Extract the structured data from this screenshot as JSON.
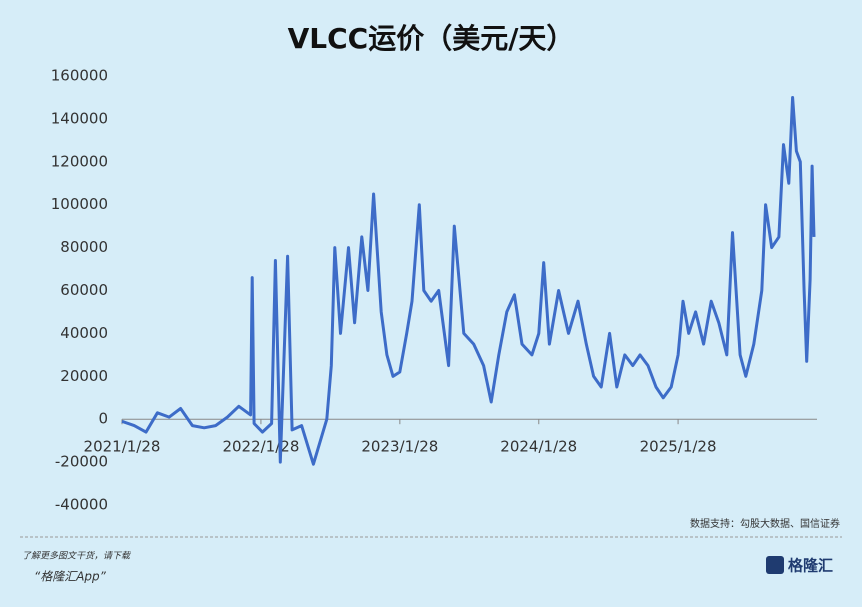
{
  "chart_data": {
    "type": "line",
    "title": "VLCC运价（美元/天）",
    "x": [
      "2021/1/28",
      "2021/3/1",
      "2021/4/1",
      "2021/5/1",
      "2021/6/1",
      "2021/7/1",
      "2021/8/1",
      "2021/9/1",
      "2021/10/1",
      "2021/11/1",
      "2021/12/1",
      "2022/1/1",
      "2022/1/5",
      "2022/1/10",
      "2022/2/1",
      "2022/2/25",
      "2022/3/7",
      "2022/3/20",
      "2022/4/8",
      "2022/4/20",
      "2022/5/15",
      "2022/6/15",
      "2022/7/20",
      "2022/8/1",
      "2022/8/10",
      "2022/8/25",
      "2022/9/15",
      "2022/10/1",
      "2022/10/20",
      "2022/11/5",
      "2022/11/20",
      "2022/12/10",
      "2022/12/25",
      "2023/1/10",
      "2023/1/28",
      "2023/2/15",
      "2023/3/1",
      "2023/3/20",
      "2023/4/1",
      "2023/4/20",
      "2023/5/10",
      "2023/6/5",
      "2023/6/20",
      "2023/7/15",
      "2023/8/10",
      "2023/9/5",
      "2023/9/25",
      "2023/10/15",
      "2023/11/5",
      "2023/11/25",
      "2023/12/15",
      "2024/1/10",
      "2024/1/28",
      "2024/2/10",
      "2024/2/25",
      "2024/3/20",
      "2024/4/15",
      "2024/5/10",
      "2024/6/1",
      "2024/6/20",
      "2024/7/10",
      "2024/8/1",
      "2024/8/20",
      "2024/9/10",
      "2024/10/1",
      "2024/10/20",
      "2024/11/10",
      "2024/12/1",
      "2024/12/20",
      "2025/1/10",
      "2025/1/28",
      "2025/2/10",
      "2025/2/25",
      "2025/3/15",
      "2025/4/5",
      "2025/4/25",
      "2025/5/15",
      "2025/6/5",
      "2025/6/20",
      "2025/7/10",
      "2025/7/25",
      "2025/8/15",
      "2025/9/5",
      "2025/9/15",
      "2025/10/1",
      "2025/10/20",
      "2025/11/1",
      "2025/11/15",
      "2025/11/25",
      "2025/12/5",
      "2025/12/15",
      "2025/12/25",
      "2026/1/1",
      "2026/1/10",
      "2026/1/15",
      "2026/1/20"
    ],
    "series": [
      {
        "name": "VLCC",
        "color": "#3d6cc8",
        "values": [
          -1000,
          -3000,
          -6000,
          3000,
          1000,
          5000,
          -3000,
          -4000,
          -3000,
          1000,
          6000,
          2000,
          66000,
          -2000,
          -6000,
          -2000,
          74000,
          -20000,
          76000,
          -5000,
          -3000,
          -21000,
          0,
          25000,
          80000,
          40000,
          80000,
          45000,
          85000,
          60000,
          105000,
          50000,
          30000,
          20000,
          22000,
          40000,
          55000,
          100000,
          60000,
          55000,
          60000,
          25000,
          90000,
          40000,
          35000,
          25000,
          8000,
          30000,
          50000,
          58000,
          35000,
          30000,
          40000,
          73000,
          35000,
          60000,
          40000,
          55000,
          35000,
          20000,
          15000,
          40000,
          15000,
          30000,
          25000,
          30000,
          25000,
          15000,
          10000,
          15000,
          30000,
          55000,
          40000,
          50000,
          35000,
          55000,
          45000,
          30000,
          87000,
          30000,
          20000,
          35000,
          60000,
          100000,
          80000,
          85000,
          128000,
          110000,
          150000,
          125000,
          120000,
          60000,
          27000,
          65000,
          118000,
          85000
        ]
      }
    ],
    "xlim": [
      "2021/1/28",
      "2026/1/28"
    ],
    "xticks": [
      "2021/1/28",
      "2022/1/28",
      "2023/1/28",
      "2024/1/28",
      "2025/1/28"
    ],
    "ylim": [
      -40000,
      160000
    ],
    "yticks": [
      -40000,
      -20000,
      0,
      20000,
      40000,
      60000,
      80000,
      100000,
      120000,
      140000,
      160000
    ],
    "source": "数据支持：勾股大数据、国信证券",
    "footer_line1": "了解更多图文干货，请下载",
    "footer_line2": "“格隆汇App”",
    "logo": "格隆汇"
  }
}
